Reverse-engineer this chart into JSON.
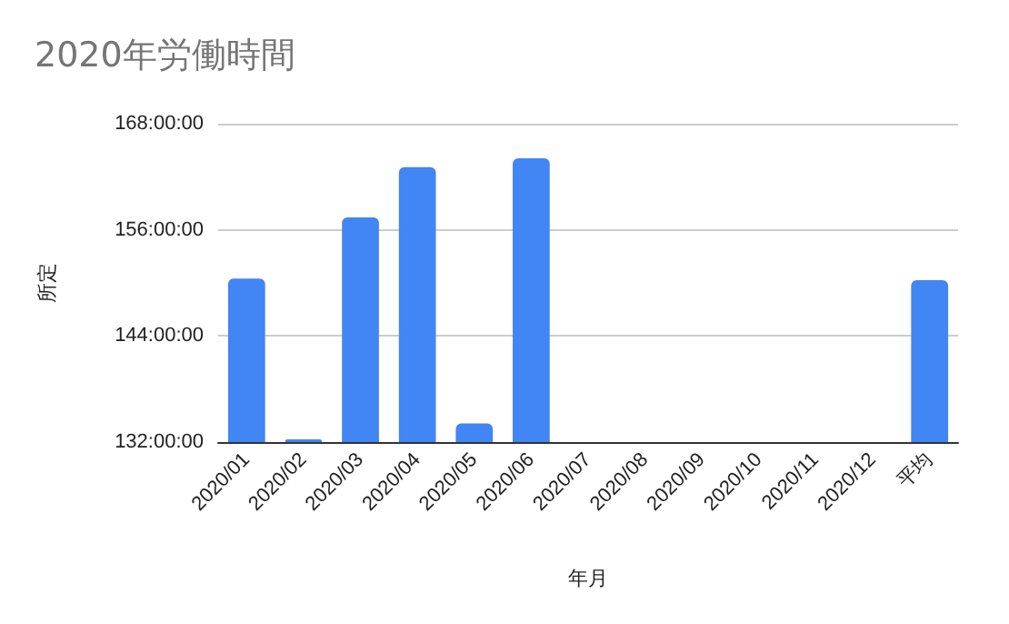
{
  "chart_data": {
    "type": "bar",
    "title": "2020年労働時間",
    "xlabel": "年月",
    "ylabel": "所定",
    "categories": [
      "2020/01",
      "2020/02",
      "2020/03",
      "2020/04",
      "2020/05",
      "2020/06",
      "2020/07",
      "2020/08",
      "2020/09",
      "2020/10",
      "2020/11",
      "2020/12",
      "平均"
    ],
    "series": [
      {
        "color": "#4285f4",
        "values": [
          150.5,
          132.3,
          157.4,
          163.1,
          134.1,
          164.1,
          null,
          null,
          null,
          null,
          null,
          null,
          150.3
        ]
      }
    ],
    "ylim": [
      132,
      168
    ],
    "yticks": [
      {
        "value": 132,
        "label": "132:00:00"
      },
      {
        "value": 144,
        "label": "144:00:00"
      },
      {
        "value": 156,
        "label": "156:00:00"
      },
      {
        "value": 168,
        "label": "168:00:00"
      }
    ],
    "grid": "y"
  }
}
